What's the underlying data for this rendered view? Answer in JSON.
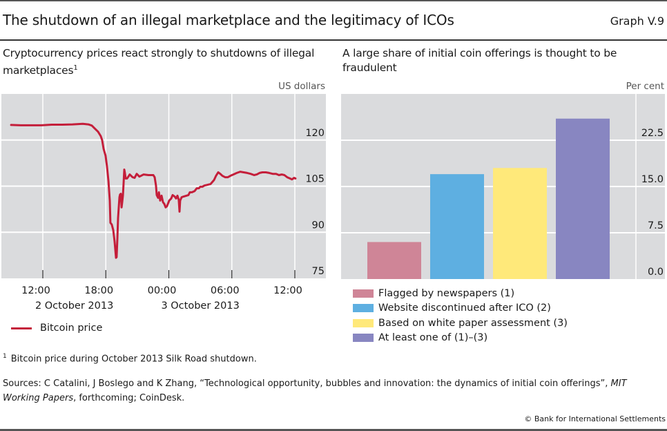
{
  "header": {
    "title": "The shutdown of an illegal marketplace and the legitimacy of ICOs",
    "graph_number": "Graph V.9"
  },
  "left_panel": {
    "subtitle": "Cryptocurrency prices react strongly to shutdowns of illegal marketplaces",
    "subtitle_footnote_marker": "1",
    "unit": "US dollars",
    "legend_label": "Bitcoin price"
  },
  "right_panel": {
    "subtitle": "A large share of initial coin offerings is thought to be fraudulent",
    "unit": "Per cent"
  },
  "footnote": {
    "marker": "1",
    "text": "Bitcoin price during October 2013 Silk Road shutdown."
  },
  "sources": {
    "prefix": "Sources: C Catalini, J Boslego and K Zhang, “Technological opportunity, bubbles and innovation: the dynamics of initial coin offerings”, ",
    "italic": "MIT Working Papers",
    "suffix": ", forthcoming; CoinDesk."
  },
  "copyright": "© Bank for International Settlements",
  "colors": {
    "plot_bg": "#dadbdd",
    "gridline": "#ffffff",
    "bitcoin_line": "#c41e3a"
  },
  "chart_data": [
    {
      "type": "line",
      "title": "Cryptocurrency prices react strongly to shutdowns of illegal marketplaces",
      "xlabel": "",
      "ylabel": "US dollars",
      "x_unit": "hours since 00:00, 2 October 2013",
      "xlim": [
        8,
        39
      ],
      "ylim": [
        75,
        135
      ],
      "yticks": [
        75,
        90,
        105,
        120
      ],
      "ytick_labels": [
        "75",
        "90",
        "105",
        "120"
      ],
      "xticks": [
        12,
        18,
        24,
        30,
        36
      ],
      "xtick_labels": [
        "12:00",
        "18:00",
        "00:00",
        "06:00",
        "12:00"
      ],
      "x_group_labels": [
        {
          "label": "2 October 2013",
          "at": 15
        },
        {
          "label": "3 October 2013",
          "at": 27
        }
      ],
      "grid": true,
      "legend": "bottom-left",
      "series": [
        {
          "name": "Bitcoin price",
          "color": "#c41e3a",
          "x": [
            8.98,
            9.9,
            11.87,
            12.85,
            13.84,
            14.83,
            15.81,
            16.34,
            16.67,
            16.93,
            17.26,
            17.52,
            17.65,
            17.79,
            17.98,
            18.11,
            18.25,
            18.38,
            18.44,
            18.57,
            18.71,
            18.84,
            18.97,
            19.03,
            19.1,
            19.17,
            19.23,
            19.3,
            19.36,
            19.43,
            19.5,
            19.56,
            19.63,
            19.69,
            19.76,
            19.82,
            19.89,
            20.02,
            20.15,
            20.28,
            20.55,
            20.74,
            20.94,
            21.2,
            21.6,
            22.06,
            22.52,
            22.65,
            22.78,
            22.85,
            22.98,
            23.05,
            23.18,
            23.31,
            23.44,
            23.57,
            23.7,
            23.83,
            24.03,
            24.23,
            24.36,
            24.56,
            24.69,
            24.82,
            24.95,
            25.02,
            25.08,
            25.22,
            25.41,
            25.68,
            25.87,
            26.0,
            26.2,
            26.46,
            26.66,
            26.86,
            26.99,
            27.19,
            27.39,
            27.65,
            27.98,
            28.31,
            28.5,
            28.7,
            28.9,
            29.09,
            29.36,
            29.62,
            29.88,
            30.15,
            30.47,
            30.8,
            31.13,
            31.46,
            31.79,
            32.12,
            32.38,
            32.64,
            32.91,
            33.24,
            33.56,
            33.89,
            34.22,
            34.49,
            34.75,
            35.01,
            35.27,
            35.54,
            35.73,
            35.93,
            36.06
          ],
          "y": [
            124.9,
            124.8,
            124.8,
            125.0,
            125.0,
            125.1,
            125.3,
            125.1,
            124.7,
            123.8,
            122.7,
            121.3,
            120.0,
            117.1,
            114.9,
            111.5,
            106.6,
            100.3,
            93.1,
            92.5,
            90.7,
            86.9,
            81.7,
            81.9,
            88.0,
            94.7,
            98.1,
            101.4,
            102.3,
            102.5,
            98.1,
            99.8,
            101.9,
            105.9,
            110.4,
            109.3,
            107.5,
            107.5,
            108.1,
            108.8,
            107.9,
            107.7,
            109.0,
            108.1,
            108.8,
            108.6,
            108.6,
            107.9,
            105.2,
            102.1,
            101.2,
            103.0,
            100.3,
            101.9,
            99.8,
            99.2,
            98.1,
            98.5,
            100.3,
            101.0,
            102.1,
            101.6,
            101.0,
            101.9,
            100.5,
            96.7,
            100.3,
            101.4,
            101.6,
            101.9,
            102.1,
            103.0,
            103.0,
            103.4,
            104.3,
            104.3,
            104.8,
            104.8,
            105.2,
            105.4,
            105.7,
            107.0,
            108.4,
            109.5,
            109.0,
            108.4,
            107.9,
            107.9,
            108.4,
            108.8,
            109.3,
            109.7,
            109.5,
            109.3,
            109.0,
            108.6,
            108.8,
            109.3,
            109.5,
            109.5,
            109.3,
            109.0,
            109.0,
            108.6,
            108.8,
            108.6,
            107.9,
            107.5,
            107.2,
            107.7,
            107.5
          ]
        }
      ]
    },
    {
      "type": "bar",
      "title": "A large share of initial coin offerings is thought to be fraudulent",
      "xlabel": "",
      "ylabel": "Per cent",
      "ylim": [
        0,
        30
      ],
      "yticks": [
        0,
        7.5,
        15,
        22.5
      ],
      "ytick_labels": [
        "0.0",
        "7.5",
        "15.0",
        "22.5"
      ],
      "grid": true,
      "legend": "bottom-left",
      "categories": [
        "Flagged by newspapers (1)",
        "Website discontinued after ICO (2)",
        "Based on white paper assessment (3)",
        "At least one of (1)–(3)"
      ],
      "values": [
        6.0,
        17.0,
        18.0,
        26.0
      ],
      "colors": [
        "#cf8597",
        "#5eafe1",
        "#ffe97a",
        "#8886c1"
      ]
    }
  ]
}
